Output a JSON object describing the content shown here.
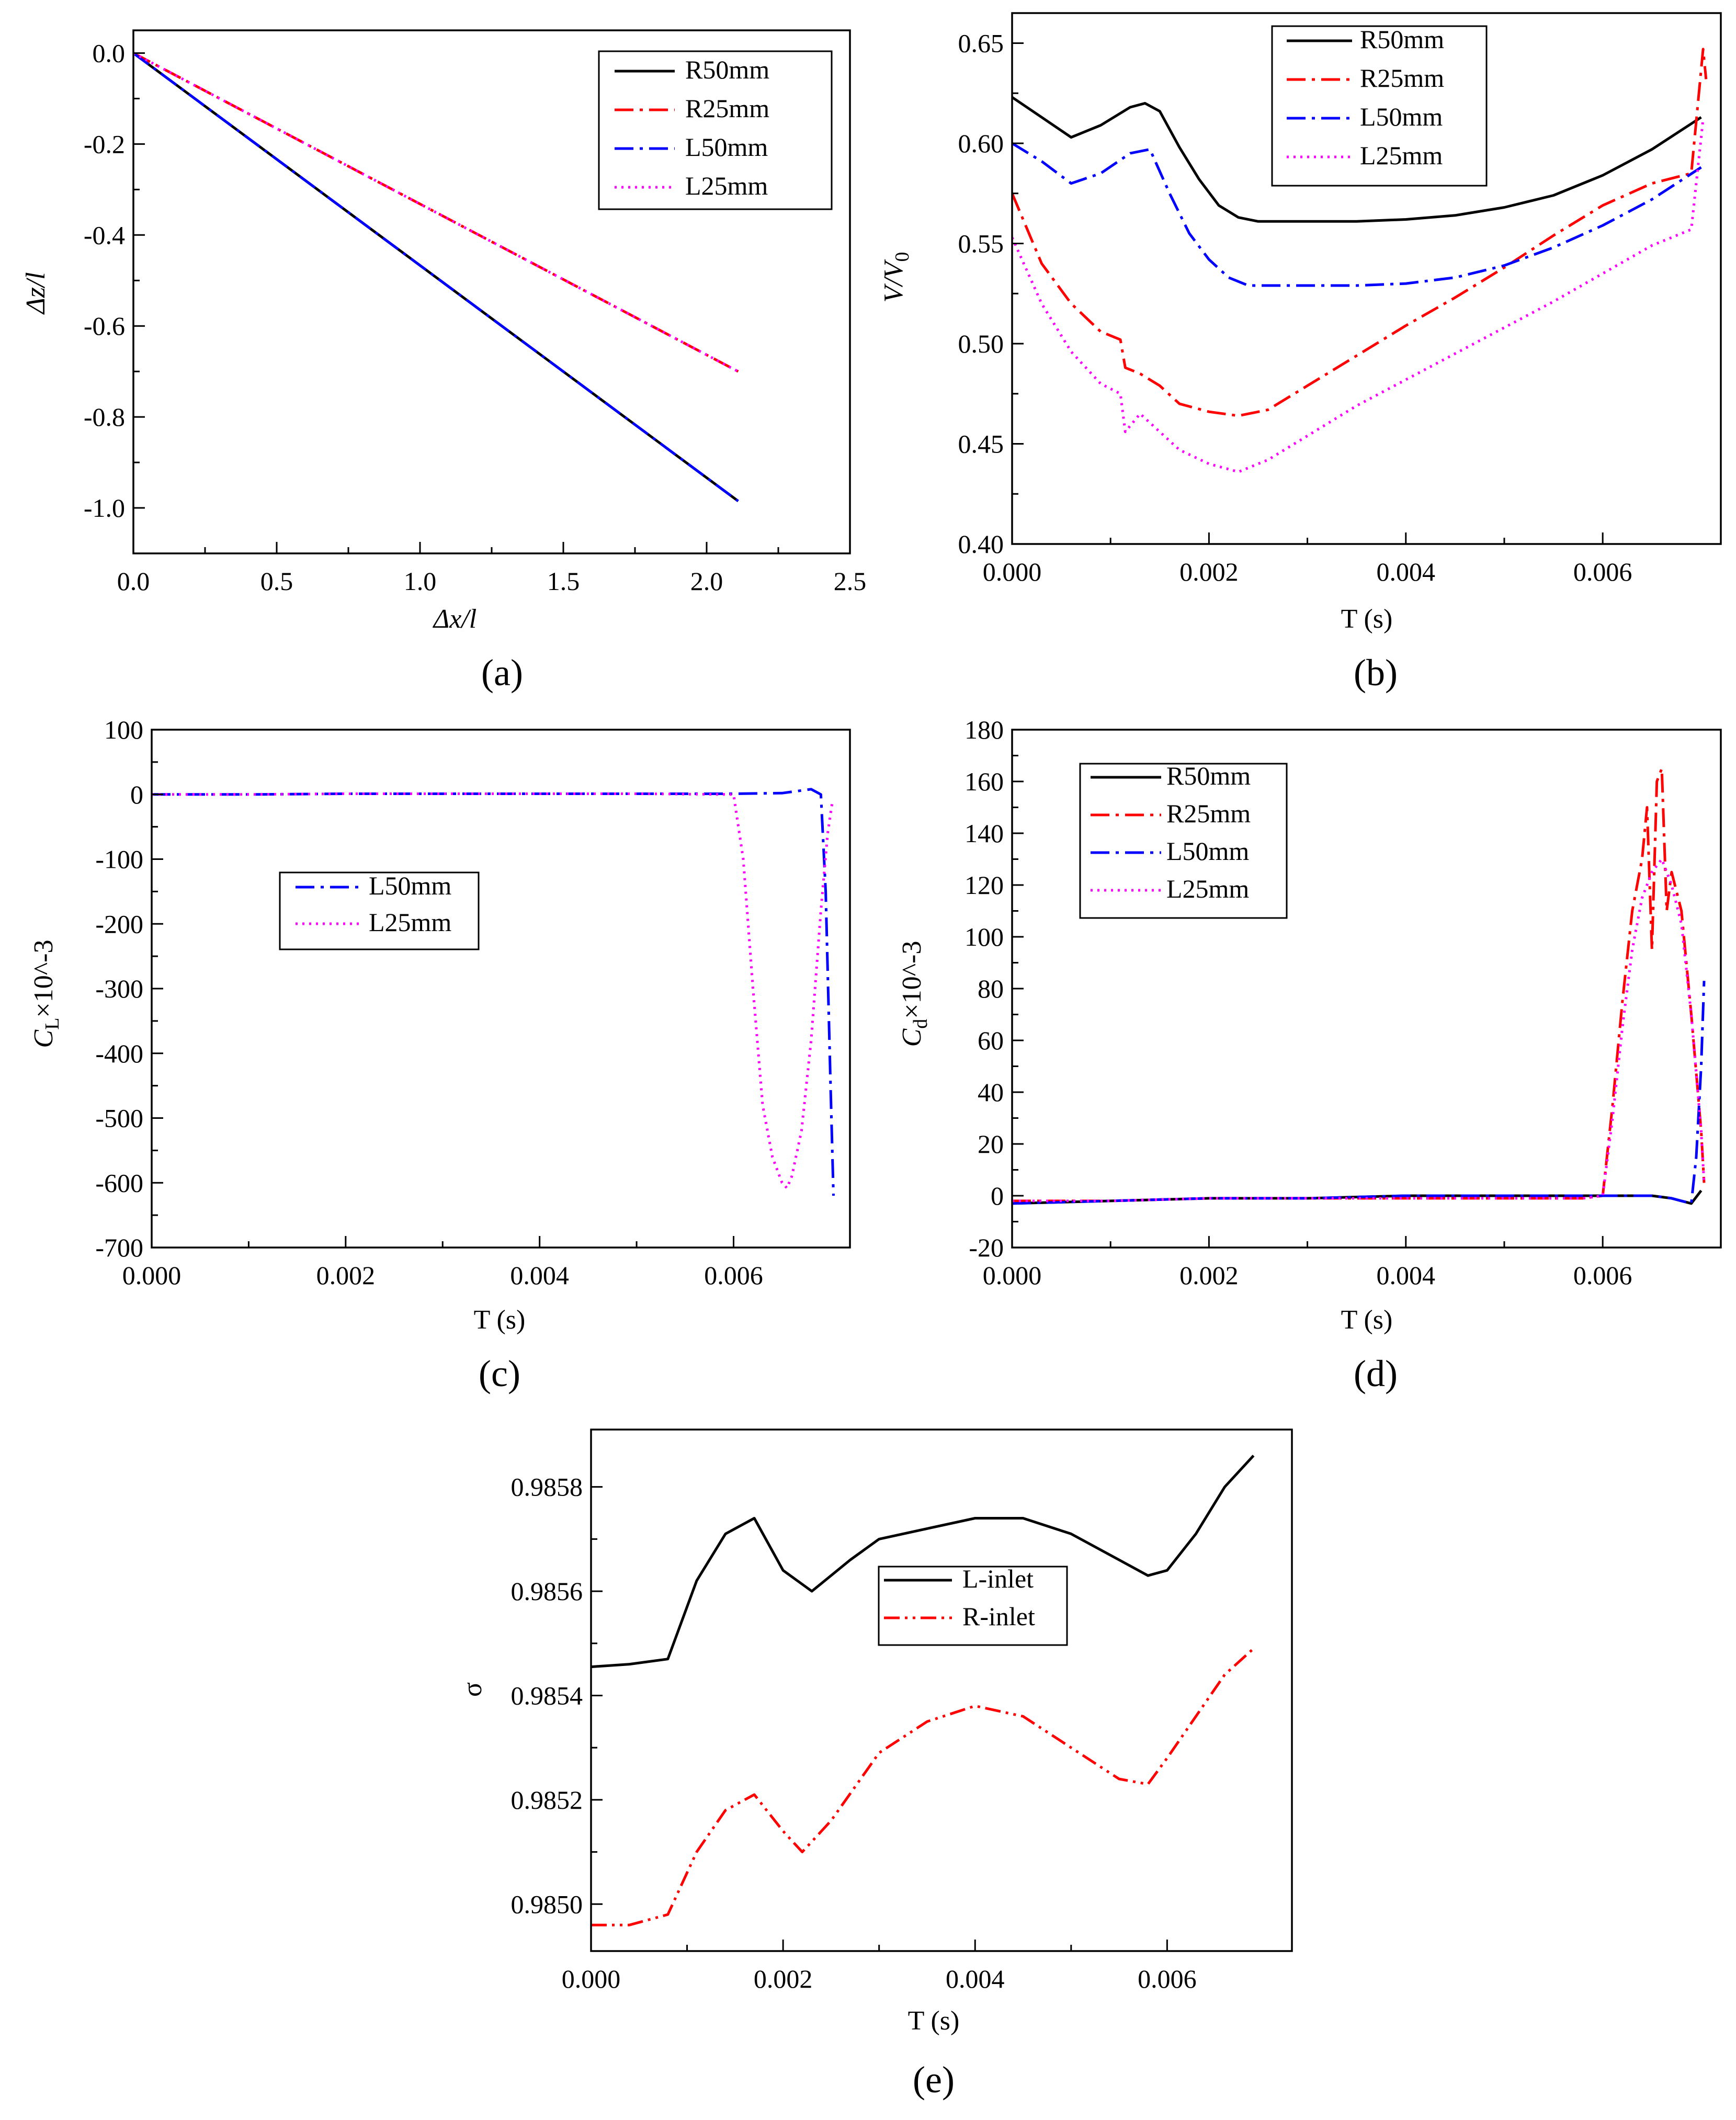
{
  "figure": {
    "panel_labels": [
      "(a)",
      "(b)",
      "(c)",
      "(d)",
      "(e)"
    ]
  },
  "chart_data": [
    {
      "id": "a",
      "type": "line",
      "panel_label": "(a)",
      "xlabel": "Δx/l",
      "ylabel": "Δz/l",
      "xlim": [
        0,
        2.5
      ],
      "ylim": [
        -1.1,
        0.05
      ],
      "xticks": [
        0.0,
        0.5,
        1.0,
        1.5,
        2.0,
        2.5
      ],
      "xtick_labels": [
        "0.0",
        "0.5",
        "1.0",
        "1.5",
        "2.0",
        "2.5"
      ],
      "yticks": [
        0.0,
        -0.2,
        -0.4,
        -0.6,
        -0.8,
        -1.0
      ],
      "ytick_labels": [
        "0.0",
        "-0.2",
        "-0.4",
        "-0.6",
        "-0.8",
        "-1.0"
      ],
      "legend_position": "top-right",
      "series": [
        {
          "name": "R50mm",
          "color": "#000000",
          "dash": "solid",
          "x": [
            0,
            2.11
          ],
          "y": [
            0,
            -0.985
          ]
        },
        {
          "name": "R25mm",
          "color": "#ff0000",
          "dash": "dashdot",
          "x": [
            0,
            2.11
          ],
          "y": [
            0,
            -0.7
          ]
        },
        {
          "name": "L50mm",
          "color": "#0000ff",
          "dash": "dashdot",
          "x": [
            0,
            2.11
          ],
          "y": [
            0,
            -0.985
          ]
        },
        {
          "name": "L25mm",
          "color": "#ff00ff",
          "dash": "dot",
          "x": [
            0,
            2.11
          ],
          "y": [
            0,
            -0.7
          ]
        }
      ]
    },
    {
      "id": "b",
      "type": "line",
      "panel_label": "(b)",
      "xlabel": "T (s)",
      "ylabel": "V/V0",
      "xlim": [
        0,
        0.0072
      ],
      "ylim": [
        0.4,
        0.665
      ],
      "xticks": [
        0,
        0.002,
        0.004,
        0.006
      ],
      "xtick_labels": [
        "0.000",
        "0.002",
        "0.004",
        "0.006"
      ],
      "yticks": [
        0.4,
        0.45,
        0.5,
        0.55,
        0.6,
        0.65
      ],
      "ytick_labels": [
        "0.40",
        "0.45",
        "0.50",
        "0.55",
        "0.60",
        "0.65"
      ],
      "legend_position": "top-center",
      "series": [
        {
          "name": "R50mm",
          "color": "#000000",
          "dash": "solid",
          "x": [
            0,
            0.0003,
            0.0006,
            0.0009,
            0.0012,
            0.00135,
            0.0015,
            0.0017,
            0.0019,
            0.0021,
            0.0023,
            0.0025,
            0.003,
            0.0035,
            0.004,
            0.0045,
            0.005,
            0.0055,
            0.006,
            0.0065,
            0.007
          ],
          "y": [
            0.623,
            0.613,
            0.603,
            0.609,
            0.618,
            0.62,
            0.616,
            0.598,
            0.582,
            0.569,
            0.563,
            0.561,
            0.561,
            0.561,
            0.562,
            0.564,
            0.568,
            0.574,
            0.584,
            0.597,
            0.613
          ]
        },
        {
          "name": "R25mm",
          "color": "#ff0000",
          "dash": "dashdot",
          "x": [
            0,
            0.0003,
            0.0006,
            0.0009,
            0.0011,
            0.00115,
            0.0013,
            0.0015,
            0.0017,
            0.002,
            0.0023,
            0.0026,
            0.003,
            0.0035,
            0.004,
            0.0045,
            0.005,
            0.0055,
            0.006,
            0.0065,
            0.0069,
            0.00702,
            0.00705
          ],
          "y": [
            0.575,
            0.54,
            0.52,
            0.506,
            0.502,
            0.488,
            0.485,
            0.479,
            0.47,
            0.466,
            0.464,
            0.467,
            0.479,
            0.494,
            0.509,
            0.523,
            0.538,
            0.554,
            0.569,
            0.58,
            0.585,
            0.647,
            0.632
          ]
        },
        {
          "name": "L50mm",
          "color": "#0000ff",
          "dash": "dashdot",
          "x": [
            0,
            0.0003,
            0.0006,
            0.0009,
            0.0012,
            0.0014,
            0.0016,
            0.0018,
            0.002,
            0.0022,
            0.0024,
            0.003,
            0.0035,
            0.004,
            0.0045,
            0.005,
            0.0055,
            0.006,
            0.0065,
            0.007
          ],
          "y": [
            0.6,
            0.591,
            0.58,
            0.585,
            0.595,
            0.597,
            0.575,
            0.555,
            0.542,
            0.533,
            0.529,
            0.529,
            0.529,
            0.53,
            0.533,
            0.539,
            0.548,
            0.559,
            0.572,
            0.588
          ]
        },
        {
          "name": "L25mm",
          "color": "#ff00ff",
          "dash": "dot",
          "x": [
            0,
            0.0003,
            0.0006,
            0.0009,
            0.0011,
            0.00115,
            0.0013,
            0.0015,
            0.0017,
            0.002,
            0.0023,
            0.0026,
            0.003,
            0.0035,
            0.004,
            0.0045,
            0.005,
            0.0055,
            0.006,
            0.0065,
            0.0069,
            0.00702
          ],
          "y": [
            0.553,
            0.52,
            0.496,
            0.48,
            0.475,
            0.456,
            0.465,
            0.456,
            0.447,
            0.44,
            0.436,
            0.442,
            0.454,
            0.469,
            0.482,
            0.495,
            0.508,
            0.521,
            0.535,
            0.549,
            0.557,
            0.612
          ]
        }
      ]
    },
    {
      "id": "c",
      "type": "line",
      "panel_label": "(c)",
      "xlabel": "T (s)",
      "ylabel": "CL×10^-3",
      "xlim": [
        0,
        0.0072
      ],
      "ylim": [
        -700,
        100
      ],
      "xticks": [
        0,
        0.002,
        0.004,
        0.006
      ],
      "xtick_labels": [
        "0.000",
        "0.002",
        "0.004",
        "0.006"
      ],
      "yticks": [
        100,
        0,
        -100,
        -200,
        -300,
        -400,
        -500,
        -600,
        -700
      ],
      "ytick_labels": [
        "100",
        "0",
        "-100",
        "-200",
        "-300",
        "-400",
        "-500",
        "-600",
        "-700"
      ],
      "legend_position": "center-left",
      "series": [
        {
          "name": "L50mm",
          "color": "#0000ff",
          "dash": "dashdot",
          "x": [
            0,
            0.001,
            0.002,
            0.003,
            0.004,
            0.005,
            0.006,
            0.0065,
            0.0068,
            0.0069,
            0.00695,
            0.007,
            0.00703
          ],
          "y": [
            0,
            0,
            1,
            1,
            1,
            1,
            1,
            2,
            8,
            0,
            -150,
            -450,
            -620
          ]
        },
        {
          "name": "L25mm",
          "color": "#ff00ff",
          "dash": "dot",
          "x": [
            0,
            0.001,
            0.002,
            0.003,
            0.004,
            0.005,
            0.006,
            0.0061,
            0.0062,
            0.0063,
            0.0064,
            0.0065,
            0.00655,
            0.0066,
            0.0067,
            0.0068,
            0.0069,
            0.00697,
            0.00702
          ],
          "y": [
            0,
            0,
            1,
            1,
            1,
            1,
            0,
            -100,
            -300,
            -480,
            -560,
            -600,
            -608,
            -590,
            -520,
            -380,
            -180,
            -60,
            -10
          ]
        }
      ]
    },
    {
      "id": "d",
      "type": "line",
      "panel_label": "(d)",
      "xlabel": "T (s)",
      "ylabel": "Cd×10^-3",
      "xlim": [
        0,
        0.0072
      ],
      "ylim": [
        -20,
        180
      ],
      "xticks": [
        0,
        0.002,
        0.004,
        0.006
      ],
      "xtick_labels": [
        "0.000",
        "0.002",
        "0.004",
        "0.006"
      ],
      "yticks": [
        -20,
        0,
        20,
        40,
        60,
        80,
        100,
        120,
        140,
        160,
        180
      ],
      "ytick_labels": [
        "-20",
        "0",
        "20",
        "40",
        "60",
        "80",
        "100",
        "120",
        "140",
        "160",
        "180"
      ],
      "legend_position": "top-left",
      "series": [
        {
          "name": "R50mm",
          "color": "#000000",
          "dash": "solid",
          "x": [
            0,
            0.001,
            0.002,
            0.003,
            0.004,
            0.005,
            0.006,
            0.0065,
            0.0067,
            0.0068,
            0.0069,
            0.007
          ],
          "y": [
            -3,
            -2,
            -1,
            -1,
            0,
            0,
            0,
            0,
            -1,
            -2,
            -3,
            2
          ]
        },
        {
          "name": "R25mm",
          "color": "#ff0000",
          "dash": "dashdot",
          "x": [
            0,
            0.001,
            0.002,
            0.003,
            0.004,
            0.005,
            0.0058,
            0.006,
            0.0061,
            0.0062,
            0.0063,
            0.0064,
            0.00645,
            0.0065,
            0.00655,
            0.0066,
            0.00665,
            0.0067,
            0.0068,
            0.0069,
            0.007,
            0.00703
          ],
          "y": [
            -2,
            -2,
            -1,
            -1,
            -1,
            -1,
            -1,
            0,
            35,
            75,
            110,
            130,
            150,
            95,
            160,
            165,
            110,
            125,
            110,
            70,
            25,
            5
          ]
        },
        {
          "name": "L50mm",
          "color": "#0000ff",
          "dash": "dashdot",
          "x": [
            0,
            0.001,
            0.002,
            0.003,
            0.004,
            0.005,
            0.006,
            0.0065,
            0.0067,
            0.0068,
            0.0069,
            0.00695,
            0.007,
            0.00703
          ],
          "y": [
            -3,
            -2,
            -1,
            -1,
            0,
            0,
            0,
            0,
            -1,
            -2,
            -3,
            15,
            50,
            83
          ]
        },
        {
          "name": "L25mm",
          "color": "#ff00ff",
          "dash": "dot",
          "x": [
            0,
            0.001,
            0.002,
            0.003,
            0.004,
            0.005,
            0.0058,
            0.006,
            0.0061,
            0.0062,
            0.0063,
            0.0064,
            0.0065,
            0.0066,
            0.0067,
            0.0068,
            0.0069,
            0.007,
            0.00703
          ],
          "y": [
            -2,
            -2,
            -1,
            -1,
            -1,
            -1,
            -1,
            0,
            30,
            65,
            95,
            115,
            125,
            130,
            120,
            105,
            70,
            25,
            5
          ]
        }
      ]
    },
    {
      "id": "e",
      "type": "line",
      "panel_label": "(e)",
      "xlabel": "T (s)",
      "ylabel": "σ",
      "xlim": [
        0,
        0.0073
      ],
      "ylim": [
        0.98491,
        0.98591
      ],
      "xticks": [
        0,
        0.002,
        0.004,
        0.006
      ],
      "xtick_labels": [
        "0.000",
        "0.002",
        "0.004",
        "0.006"
      ],
      "yticks": [
        0.985,
        0.9852,
        0.9854,
        0.9856,
        0.9858
      ],
      "ytick_labels": [
        "0.9850",
        "0.9852",
        "0.9854",
        "0.9856",
        "0.9858"
      ],
      "legend_position": "center",
      "series": [
        {
          "name": "L-inlet",
          "color": "#000000",
          "dash": "solid",
          "x": [
            0,
            0.0004,
            0.0008,
            0.0011,
            0.0014,
            0.0017,
            0.002,
            0.0023,
            0.0027,
            0.003,
            0.0035,
            0.004,
            0.0045,
            0.005,
            0.0055,
            0.0058,
            0.006,
            0.0063,
            0.0066,
            0.0069
          ],
          "y": [
            0.985455,
            0.98546,
            0.98547,
            0.98562,
            0.98571,
            0.98574,
            0.98564,
            0.9856,
            0.98566,
            0.9857,
            0.98572,
            0.98574,
            0.98574,
            0.98571,
            0.98566,
            0.98563,
            0.98564,
            0.98571,
            0.9858,
            0.98586
          ]
        },
        {
          "name": "R-inlet",
          "color": "#ff0000",
          "dash": "dashdotdot",
          "x": [
            0,
            0.0004,
            0.0008,
            0.0011,
            0.0014,
            0.0017,
            0.002,
            0.0022,
            0.0025,
            0.003,
            0.0035,
            0.004,
            0.0045,
            0.005,
            0.0055,
            0.0058,
            0.006,
            0.0063,
            0.0066,
            0.0069
          ],
          "y": [
            0.98496,
            0.98496,
            0.98498,
            0.9851,
            0.98518,
            0.98521,
            0.98514,
            0.9851,
            0.98516,
            0.98529,
            0.98535,
            0.98538,
            0.98536,
            0.9853,
            0.98524,
            0.98523,
            0.98528,
            0.98536,
            0.98544,
            0.98549
          ]
        }
      ]
    }
  ]
}
